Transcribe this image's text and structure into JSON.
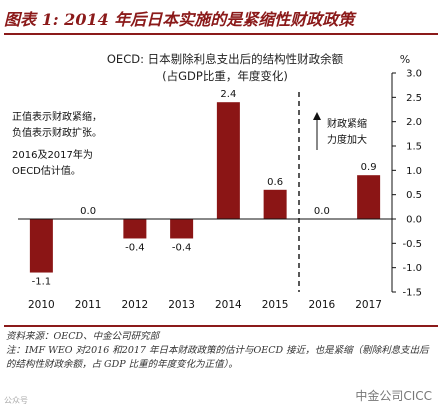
{
  "figure_title": "图表 1: 2014 年后日本实施的是紧缩性财政政策",
  "chart_data": {
    "type": "bar",
    "title": "OECD: 日本剔除利息支出后的结构性财政余额",
    "subtitle": "(占GDP比重，年度变化)",
    "unit_label": "%",
    "categories": [
      "2010",
      "2011",
      "2012",
      "2013",
      "2014",
      "2015",
      "2016",
      "2017"
    ],
    "values": [
      -1.1,
      0.0,
      -0.4,
      -0.4,
      2.4,
      0.6,
      0.0,
      0.9
    ],
    "value_labels": [
      "-1.1",
      "0.0",
      "-0.4",
      "-0.4",
      "2.4",
      "0.6",
      "0.0",
      "0.9"
    ],
    "ylim": [
      -1.5,
      3.0
    ],
    "yticks": [
      "3.0",
      "2.5",
      "2.0",
      "1.5",
      "1.0",
      "0.5",
      "0.0",
      "-0.5",
      "-1.0",
      "-1.5"
    ],
    "y_axis_side": "right",
    "bar_color": "#8b1515",
    "annotation_left_1": [
      "正值表示财政紧缩，",
      "负值表示财政扩张。"
    ],
    "annotation_left_2": [
      "2016及2017年为",
      "OECD估计值。"
    ],
    "annotation_right": [
      "财政紧缩",
      "力度加大"
    ]
  },
  "source_line": "资料来源：OECD、中金公司研究部",
  "note_line": "注：IMF WEO 对2016 和2017 年日本财政政策的估计与OECD 接近，也是紧缩（剔除利息支出后的结构性财政余额，占 GDP 比重的年度变化为正值）。",
  "brand": "中金公司CICC",
  "watermark": "公众号"
}
